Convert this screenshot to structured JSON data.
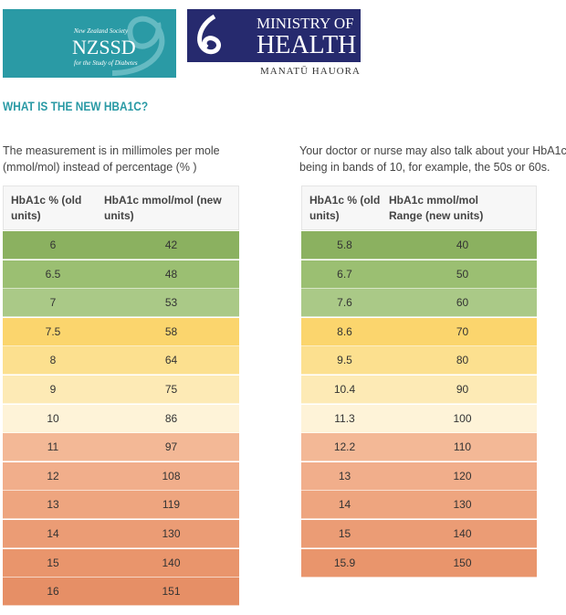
{
  "logos": {
    "nzssd": {
      "line1": "New Zealand Society",
      "acronym": "NZSSD",
      "line2": "for the Study of Diabetes"
    },
    "ministry": {
      "line1": "MINISTRY OF",
      "line2": "HEALTH",
      "maori": "MANATŪ HAUORA"
    }
  },
  "heading": "WHAT IS THE NEW HBA1C?",
  "left": {
    "text": "The measurement is in millimoles per mole (mmol/mol) instead of percentage (% )",
    "table": {
      "headers": [
        "HbA1c % (old units)",
        "HbA1c mmol/mol (new units)"
      ],
      "rows": [
        [
          6,
          42
        ],
        [
          6.5,
          48
        ],
        [
          7,
          53
        ],
        [
          7.5,
          58
        ],
        [
          8,
          64
        ],
        [
          9,
          75
        ],
        [
          10,
          86
        ],
        [
          11,
          97
        ],
        [
          12,
          108
        ],
        [
          13,
          119
        ],
        [
          14,
          130
        ],
        [
          15,
          140
        ],
        [
          16,
          151
        ]
      ]
    }
  },
  "right": {
    "text": "Your doctor or nurse may also talk about your HbA1c being in bands of 10, for example, the 50s or 60s.",
    "table": {
      "headers": [
        "HbA1c % (old units)",
        "HbA1c mmol/mol Range (new units)"
      ],
      "rows": [
        [
          5.8,
          40
        ],
        [
          6.7,
          50
        ],
        [
          7.6,
          60
        ],
        [
          8.6,
          70
        ],
        [
          9.5,
          80
        ],
        [
          10.4,
          90
        ],
        [
          11.3,
          100
        ],
        [
          12.2,
          110
        ],
        [
          13,
          120
        ],
        [
          14,
          130
        ],
        [
          15,
          140
        ],
        [
          15.9,
          150
        ]
      ]
    }
  }
}
